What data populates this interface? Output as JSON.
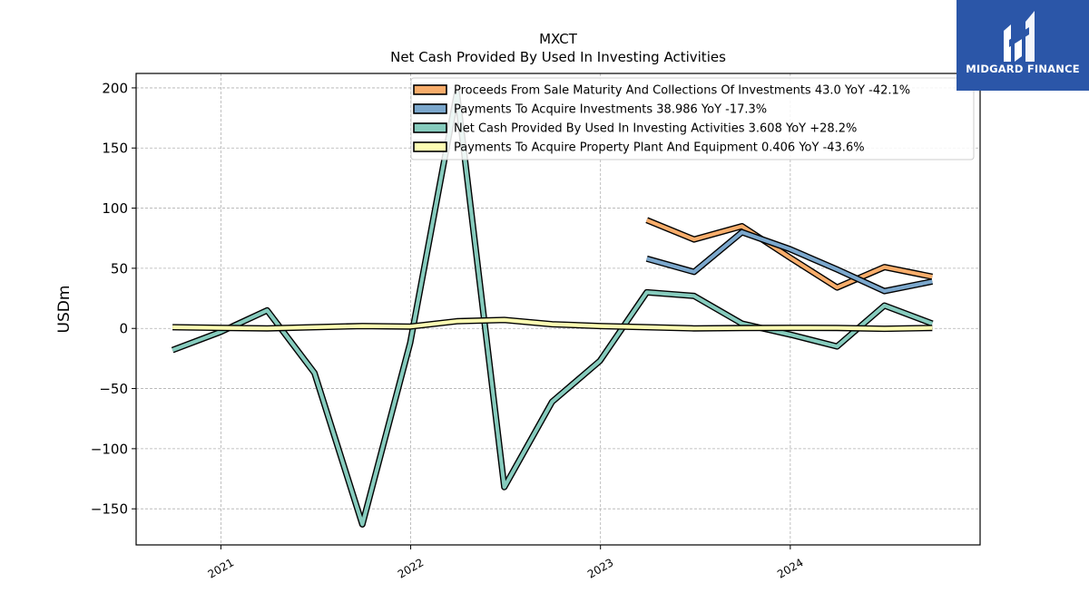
{
  "chart_data": {
    "type": "line",
    "title": "MXCT",
    "subtitle": "Net Cash Provided By Used In Investing Activities",
    "ylabel": "USDm",
    "xlabel": "",
    "ylim": [
      -180,
      212
    ],
    "xlim": [
      "2020-07-22",
      "2024-12-31"
    ],
    "yticks": [
      200,
      150,
      100,
      50,
      0,
      -50,
      -100,
      -150
    ],
    "ytick_labels": [
      "200",
      "150",
      "100",
      "50",
      "0",
      "−50",
      "−100",
      "−150"
    ],
    "xticks": [
      "2021-01-01",
      "2022-01-01",
      "2023-01-01",
      "2024-01-01"
    ],
    "xtick_labels": [
      "2021",
      "2022",
      "2023",
      "2024"
    ],
    "grid": true,
    "legend_position": "top-right",
    "series": [
      {
        "name": "Proceeds From Sale Maturity And Collections Of Investments",
        "legend": "Proceeds From Sale Maturity And Collections Of Investments  43.0 YoY -42.1%",
        "color": "#f8ad6b",
        "x": [
          "2023-03-31",
          "2023-06-30",
          "2023-09-30",
          "2023-12-31",
          "2024-03-31",
          "2024-06-30",
          "2024-09-30"
        ],
        "values": [
          90,
          74,
          85,
          59,
          34,
          51,
          43
        ]
      },
      {
        "name": "Payments To Acquire Investments",
        "legend": "Payments To Acquire Investments  38.986 YoY -17.3%",
        "color": "#7ba7cc",
        "x": [
          "2023-03-31",
          "2023-06-30",
          "2023-09-30",
          "2023-12-31",
          "2024-03-31",
          "2024-06-30",
          "2024-09-30"
        ],
        "values": [
          58,
          47,
          80,
          66,
          49,
          31,
          39
        ]
      },
      {
        "name": "Net Cash Provided By Used In Investing Activities",
        "legend": "Net Cash Provided By Used In Investing Activities  3.608 YoY +28.2%",
        "color": "#86cbbd",
        "x": [
          "2020-09-30",
          "2020-12-31",
          "2021-03-31",
          "2021-06-30",
          "2021-09-30",
          "2021-12-31",
          "2022-03-31",
          "2022-06-30",
          "2022-09-30",
          "2022-12-31",
          "2023-03-31",
          "2023-06-30",
          "2023-09-30",
          "2023-12-31",
          "2024-03-31",
          "2024-06-30",
          "2024-09-30"
        ],
        "values": [
          -18,
          -3,
          15,
          -37,
          -163,
          -12,
          196,
          -132,
          -61,
          -27,
          30,
          27,
          4,
          -5,
          -15,
          19,
          4
        ]
      },
      {
        "name": "Payments To Acquire Property Plant And Equipment",
        "legend": "Payments To Acquire Property Plant And Equipment  0.406 YoY -43.6%",
        "color": "#fdfdb3",
        "x": [
          "2020-09-30",
          "2020-12-31",
          "2021-03-31",
          "2021-06-30",
          "2021-09-30",
          "2021-12-31",
          "2022-03-31",
          "2022-06-30",
          "2022-09-30",
          "2022-12-31",
          "2023-03-31",
          "2023-06-30",
          "2023-09-30",
          "2023-12-31",
          "2024-03-31",
          "2024-06-30",
          "2024-09-30"
        ],
        "values": [
          1,
          0.5,
          0,
          1,
          2,
          1.5,
          6,
          7,
          3.5,
          2,
          1,
          0,
          0.3,
          0.5,
          0.4,
          -0.3,
          0.4
        ]
      }
    ]
  },
  "logo": {
    "text": "MIDGARD FINANCE",
    "background": "#2b56a8"
  }
}
